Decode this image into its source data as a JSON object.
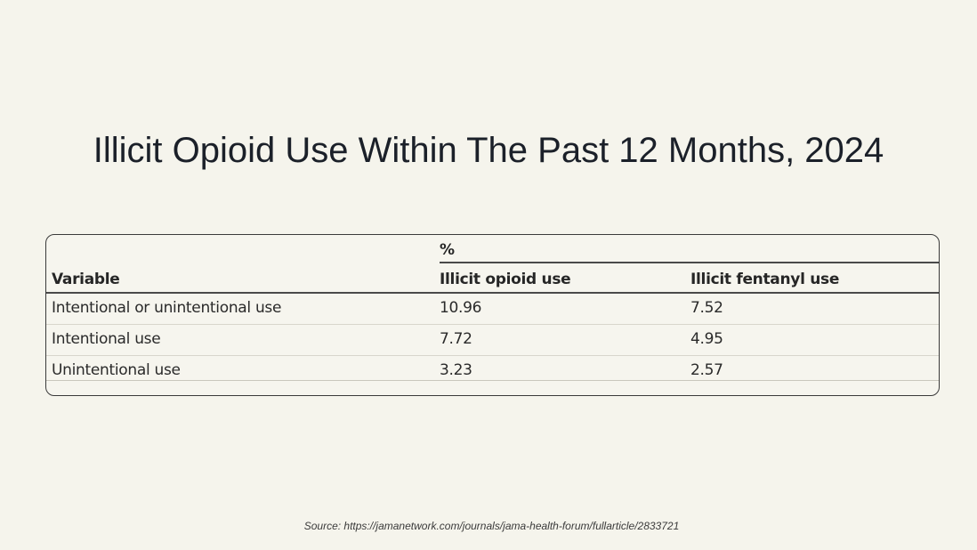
{
  "title": "Illicit Opioid Use Within The Past 12 Months, 2024",
  "table": {
    "spanner_label": "%",
    "columns": [
      "Variable",
      "Illicit opioid use",
      "Illicit fentanyl use"
    ],
    "rows": [
      [
        "Intentional or unintentional use",
        "10.96",
        "7.52"
      ],
      [
        "Intentional use",
        "7.72",
        "4.95"
      ],
      [
        "Unintentional use",
        "3.23",
        "2.57"
      ]
    ]
  },
  "source": "Source: https://jamanetwork.com/journals/jama-health-forum/fullarticle/2833721"
}
